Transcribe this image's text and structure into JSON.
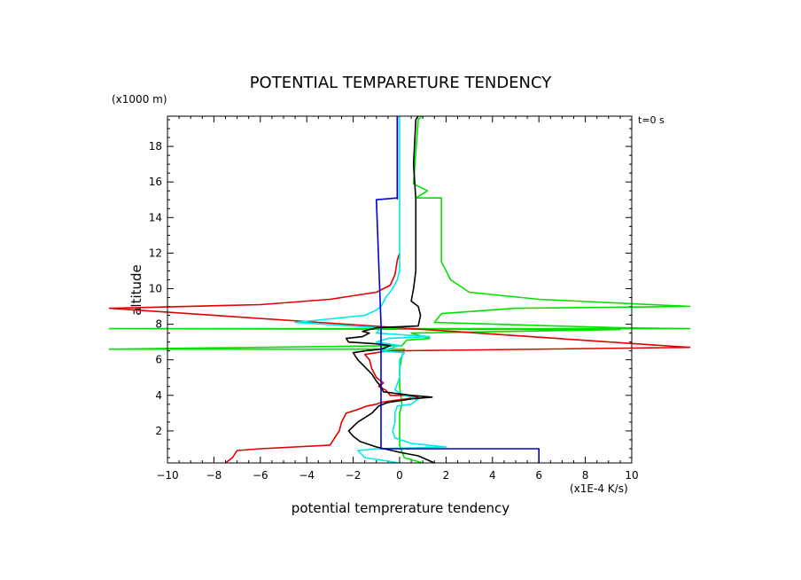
{
  "chart_data": {
    "type": "line",
    "title": "POTENTIAL TEMPARETURE TENDENCY",
    "xlabel": "potential temprerature tendency",
    "ylabel": "altitude",
    "x_unit_label": "(x1E-4 K/s)",
    "y_unit_label": "(x1000 m)",
    "time_label": "t=0 s",
    "xlim": [
      -10,
      10
    ],
    "ylim": [
      0.2,
      19.7
    ],
    "x_ticks": [
      -10,
      -8,
      -6,
      -4,
      -2,
      0,
      2,
      4,
      6,
      8,
      10
    ],
    "y_ticks": [
      2,
      4,
      6,
      8,
      10,
      12,
      14,
      16,
      18
    ],
    "series": [
      {
        "name": "green",
        "color": "#00e000",
        "points": [
          [
            1.0,
            0.2
          ],
          [
            0.2,
            0.5
          ],
          [
            0,
            1.2
          ],
          [
            0,
            3.0
          ],
          [
            0.1,
            3.5
          ],
          [
            0,
            4.5
          ],
          [
            0,
            5.5
          ],
          [
            0.1,
            6.2
          ],
          [
            0.2,
            6.6
          ],
          [
            -12.5,
            6.6
          ],
          [
            -12.5,
            6.6
          ],
          [
            0.1,
            6.8
          ],
          [
            0.3,
            7.1
          ],
          [
            1.3,
            7.2
          ],
          [
            0.5,
            7.5
          ],
          [
            9.5,
            7.7
          ],
          [
            -12.5,
            7.75
          ],
          [
            12.5,
            7.75
          ],
          [
            9.5,
            7.8
          ],
          [
            1.5,
            8.1
          ],
          [
            1.8,
            8.6
          ],
          [
            5,
            8.9
          ],
          [
            12.5,
            9.0
          ],
          [
            12.5,
            9.0
          ],
          [
            6,
            9.4
          ],
          [
            3,
            9.8
          ],
          [
            2.2,
            10.5
          ],
          [
            1.8,
            11.5
          ],
          [
            1.8,
            15.1
          ],
          [
            0.7,
            15.1
          ],
          [
            1.2,
            15.5
          ],
          [
            0.6,
            15.9
          ],
          [
            0.8,
            19.5
          ],
          [
            0.95,
            19.7
          ]
        ]
      },
      {
        "name": "red",
        "color": "#e00000",
        "points": [
          [
            -7.5,
            0.2
          ],
          [
            -7.2,
            0.5
          ],
          [
            -7.0,
            0.9
          ],
          [
            -6.0,
            1.0
          ],
          [
            -3.0,
            1.2
          ],
          [
            -2.8,
            1.6
          ],
          [
            -2.6,
            2.0
          ],
          [
            -2.5,
            2.5
          ],
          [
            -2.3,
            3.0
          ],
          [
            -1.8,
            3.2
          ],
          [
            -1.4,
            3.4
          ],
          [
            -1.0,
            3.5
          ],
          [
            -0.8,
            3.6
          ],
          [
            -0.3,
            3.7
          ],
          [
            0.3,
            3.8
          ],
          [
            0.8,
            3.9
          ],
          [
            0.3,
            4.0
          ],
          [
            -0.4,
            4.0
          ],
          [
            -0.6,
            4.3
          ],
          [
            -0.9,
            4.5
          ],
          [
            -0.7,
            4.7
          ],
          [
            -1.0,
            5.0
          ],
          [
            -1.2,
            5.5
          ],
          [
            -1.3,
            6.0
          ],
          [
            -1.5,
            6.3
          ],
          [
            -1.0,
            6.4
          ],
          [
            -0.5,
            6.5
          ],
          [
            12.5,
            6.7
          ],
          [
            12.5,
            6.7
          ],
          [
            -12.5,
            8.9
          ],
          [
            -6.0,
            9.1
          ],
          [
            -3.0,
            9.4
          ],
          [
            -2.0,
            9.6
          ],
          [
            -1.0,
            9.8
          ],
          [
            -0.4,
            10.2
          ],
          [
            -0.2,
            10.8
          ],
          [
            -0.1,
            11.6
          ],
          [
            0,
            12.0
          ]
        ]
      },
      {
        "name": "cyan",
        "color": "#00e8e8",
        "points": [
          [
            0,
            0.2
          ],
          [
            -1.5,
            0.5
          ],
          [
            -1.8,
            0.9
          ],
          [
            -1.0,
            1.0
          ],
          [
            2.0,
            1.1
          ],
          [
            0.5,
            1.3
          ],
          [
            -0.2,
            1.6
          ],
          [
            -0.3,
            2.0
          ],
          [
            -0.2,
            2.5
          ],
          [
            -0.2,
            3.0
          ],
          [
            -0.1,
            3.4
          ],
          [
            0.5,
            3.5
          ],
          [
            0.8,
            3.8
          ],
          [
            0.2,
            4.0
          ],
          [
            -0.2,
            4.3
          ],
          [
            0,
            5.0
          ],
          [
            0,
            5.5
          ],
          [
            0,
            6.0
          ],
          [
            0.2,
            6.4
          ],
          [
            -0.8,
            6.5
          ],
          [
            0,
            6.8
          ],
          [
            -1.0,
            7.0
          ],
          [
            -0.5,
            7.2
          ],
          [
            1.3,
            7.3
          ],
          [
            -1.0,
            7.5
          ],
          [
            -0.8,
            7.8
          ],
          [
            -4.5,
            8.1
          ],
          [
            -1.5,
            8.5
          ],
          [
            -1.0,
            8.8
          ],
          [
            -0.8,
            9.0
          ],
          [
            -0.6,
            9.5
          ],
          [
            -0.3,
            10.0
          ],
          [
            -0.1,
            10.5
          ],
          [
            0,
            11.0
          ],
          [
            0,
            12.0
          ],
          [
            0,
            15.0
          ],
          [
            0,
            19.7
          ]
        ]
      },
      {
        "name": "black",
        "color": "#000000",
        "points": [
          [
            1.5,
            0.2
          ],
          [
            0.8,
            0.6
          ],
          [
            0,
            0.8
          ],
          [
            -1.0,
            1.1
          ],
          [
            -1.7,
            1.4
          ],
          [
            -2.0,
            1.7
          ],
          [
            -2.2,
            2.0
          ],
          [
            -1.8,
            2.5
          ],
          [
            -1.2,
            3.0
          ],
          [
            -0.9,
            3.4
          ],
          [
            -0.5,
            3.6
          ],
          [
            0,
            3.7
          ],
          [
            0.5,
            3.8
          ],
          [
            1.4,
            3.9
          ],
          [
            0.5,
            4.0
          ],
          [
            -0.7,
            4.2
          ],
          [
            -0.8,
            4.5
          ],
          [
            -1.0,
            4.8
          ],
          [
            -1.2,
            5.2
          ],
          [
            -1.5,
            5.6
          ],
          [
            -1.8,
            6.0
          ],
          [
            -2.0,
            6.4
          ],
          [
            -1.5,
            6.5
          ],
          [
            -0.8,
            6.6
          ],
          [
            -0.4,
            6.8
          ],
          [
            -1.0,
            6.9
          ],
          [
            -2.2,
            7.0
          ],
          [
            -2.3,
            7.2
          ],
          [
            -1.6,
            7.3
          ],
          [
            -1.3,
            7.5
          ],
          [
            -1.6,
            7.6
          ],
          [
            -1.0,
            7.8
          ],
          [
            0.8,
            7.9
          ],
          [
            0.9,
            8.5
          ],
          [
            0.8,
            9.0
          ],
          [
            0.5,
            9.3
          ],
          [
            0.6,
            10.0
          ],
          [
            0.7,
            11.0
          ],
          [
            0.7,
            15.0
          ],
          [
            0.6,
            17.0
          ],
          [
            0.7,
            19.5
          ],
          [
            0.8,
            19.7
          ]
        ]
      },
      {
        "name": "purple",
        "color": "#8800aa",
        "points": [
          [
            -0.1,
            15.0
          ],
          [
            -0.1,
            17.0
          ],
          [
            -0.1,
            19.7
          ]
        ]
      },
      {
        "name": "blue",
        "color": "#0000d0",
        "points": [
          [
            6.0,
            0.2
          ],
          [
            6.0,
            1.0
          ],
          [
            -0.8,
            1.0
          ],
          [
            -0.8,
            5.0
          ],
          [
            -0.8,
            8.0
          ],
          [
            -1.0,
            15.0
          ],
          [
            -0.1,
            15.1
          ],
          [
            -0.1,
            17.0
          ],
          [
            -0.1,
            19.7
          ]
        ]
      }
    ]
  }
}
